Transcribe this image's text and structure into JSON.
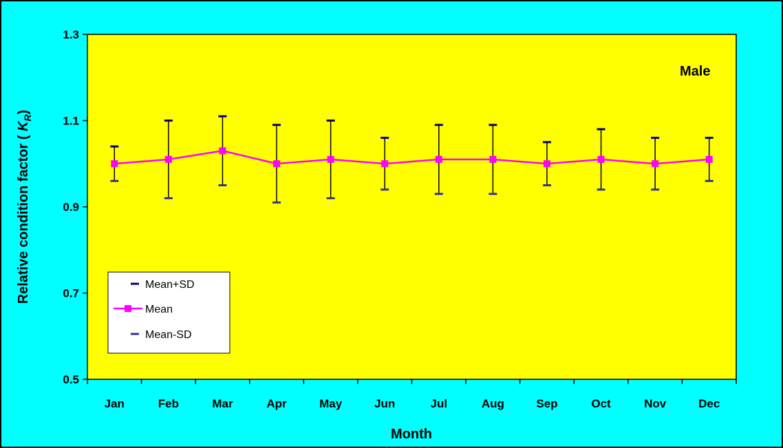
{
  "chart_data": {
    "type": "line",
    "title": "",
    "annotation": "Male",
    "xlabel": "Month",
    "ylabel_prefix": "Relative condition factor ( ",
    "ylabel_symbol": "K",
    "ylabel_subscript": "R",
    "ylabel_suffix": ")",
    "ylim": [
      0.5,
      1.3
    ],
    "yticks": [
      0.5,
      0.7,
      0.9,
      1.1,
      1.3
    ],
    "ytick_labels": [
      "0.5",
      "0.7",
      "0.9",
      "1.1",
      "1.3"
    ],
    "categories": [
      "Jan",
      "Feb",
      "Mar",
      "Apr",
      "May",
      "Jun",
      "Jul",
      "Aug",
      "Sep",
      "Oct",
      "Nov",
      "Dec"
    ],
    "series": [
      {
        "name": "Mean+SD",
        "values": [
          1.04,
          1.1,
          1.11,
          1.09,
          1.1,
          1.06,
          1.09,
          1.09,
          1.05,
          1.08,
          1.06,
          1.06
        ]
      },
      {
        "name": "Mean",
        "values": [
          1.0,
          1.01,
          1.03,
          1.0,
          1.01,
          1.0,
          1.01,
          1.01,
          1.0,
          1.01,
          1.0,
          1.01
        ]
      },
      {
        "name": "Mean-SD",
        "values": [
          0.96,
          0.92,
          0.95,
          0.91,
          0.92,
          0.94,
          0.93,
          0.93,
          0.95,
          0.94,
          0.94,
          0.96
        ]
      }
    ],
    "legend_position": "lower-left",
    "grid": false,
    "colors": {
      "background": "#00ffff",
      "plot_area": "#ffff00",
      "mean_line": "#ff00ff",
      "sd_upper": "#000080",
      "sd_lower": "#333399",
      "error_bar": "#000000"
    }
  }
}
